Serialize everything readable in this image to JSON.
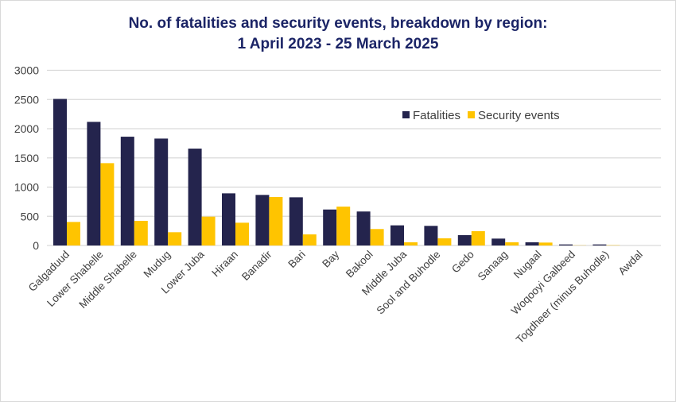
{
  "chart_data": {
    "type": "bar",
    "title_line1": "No. of fatalities and security events, breakdown by region:",
    "title_line2": "1 April 2023 - 25 March 2025",
    "xlabel": "",
    "ylabel": "",
    "ylim": [
      0,
      3000
    ],
    "yticks": [
      0,
      500,
      1000,
      1500,
      2000,
      2500,
      3000
    ],
    "grid": true,
    "legend_position": "top-right",
    "categories": [
      "Galgaduud",
      "Lower Shabelle",
      "Middle Shabelle",
      "Mudug",
      "Lower Juba",
      "Hiraan",
      "Banadir",
      "Bari",
      "Bay",
      "Bakool",
      "Middle Juba",
      "Sool and Buhodle",
      "Gedo",
      "Sanaag",
      "Nugaal",
      "Woqooyi Galbeed",
      "Togdheer (minus Buhodle)",
      "Awdal"
    ],
    "series": [
      {
        "name": "Fatalities",
        "color": "#24244d",
        "values": [
          2510,
          2117,
          1863,
          1831,
          1659,
          893,
          866,
          825,
          616,
          582,
          345,
          336,
          177,
          118,
          55,
          18,
          18,
          0
        ]
      },
      {
        "name": "Security events",
        "color": "#ffc400",
        "values": [
          403,
          1410,
          422,
          227,
          494,
          390,
          830,
          190,
          666,
          282,
          55,
          123,
          245,
          55,
          50,
          3,
          5,
          0
        ]
      }
    ]
  }
}
